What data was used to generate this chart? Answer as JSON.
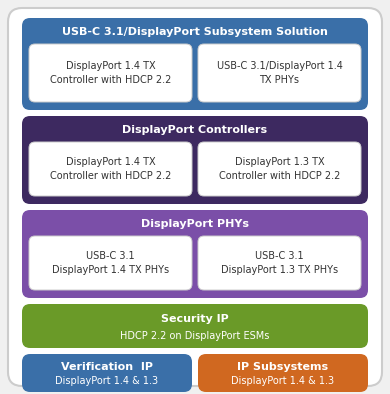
{
  "fig_bg": "#f0f0f0",
  "outer_bg": "#ffffff",
  "outer_border": "#cccccc",
  "inner_box_color": "#ffffff",
  "inner_box_text_color": "#333333",
  "sections": [
    {
      "label": "USB-C 3.1/DisplayPort Subsystem Solution",
      "bg_color": "#3a6fa8",
      "title_color": "#ffffff",
      "boxes": [
        {
          "text": "DisplayPort 1.4 TX\nController with HDCP 2.2"
        },
        {
          "text": "USB-C 3.1/DisplayPort 1.4\nTX PHYs"
        }
      ]
    },
    {
      "label": "DisplayPort Controllers",
      "bg_color": "#3d2960",
      "title_color": "#ffffff",
      "boxes": [
        {
          "text": "DisplayPort 1.4 TX\nController with HDCP 2.2"
        },
        {
          "text": "DisplayPort 1.3 TX\nController with HDCP 2.2"
        }
      ]
    },
    {
      "label": "DisplayPort PHYs",
      "bg_color": "#7b4fa8",
      "title_color": "#ffffff",
      "boxes": [
        {
          "text": "USB-C 3.1\nDisplayPort 1.4 TX PHYs"
        },
        {
          "text": "USB-C 3.1\nDisplayPort 1.3 TX PHYs"
        }
      ]
    }
  ],
  "security_box": {
    "label": "Security IP",
    "sublabel": "HDCP 2.2 on DisplayPort ESMs",
    "bg_color": "#6a9a28",
    "title_color": "#ffffff"
  },
  "bottom_boxes": [
    {
      "label": "Verification  IP",
      "sublabel": "DisplayPort 1.4 & 1.3",
      "bg_color": "#3a6fa8",
      "title_color": "#ffffff"
    },
    {
      "label": "IP Subsystems",
      "sublabel": "DisplayPort 1.4 & 1.3",
      "bg_color": "#d06820",
      "title_color": "#ffffff"
    }
  ]
}
